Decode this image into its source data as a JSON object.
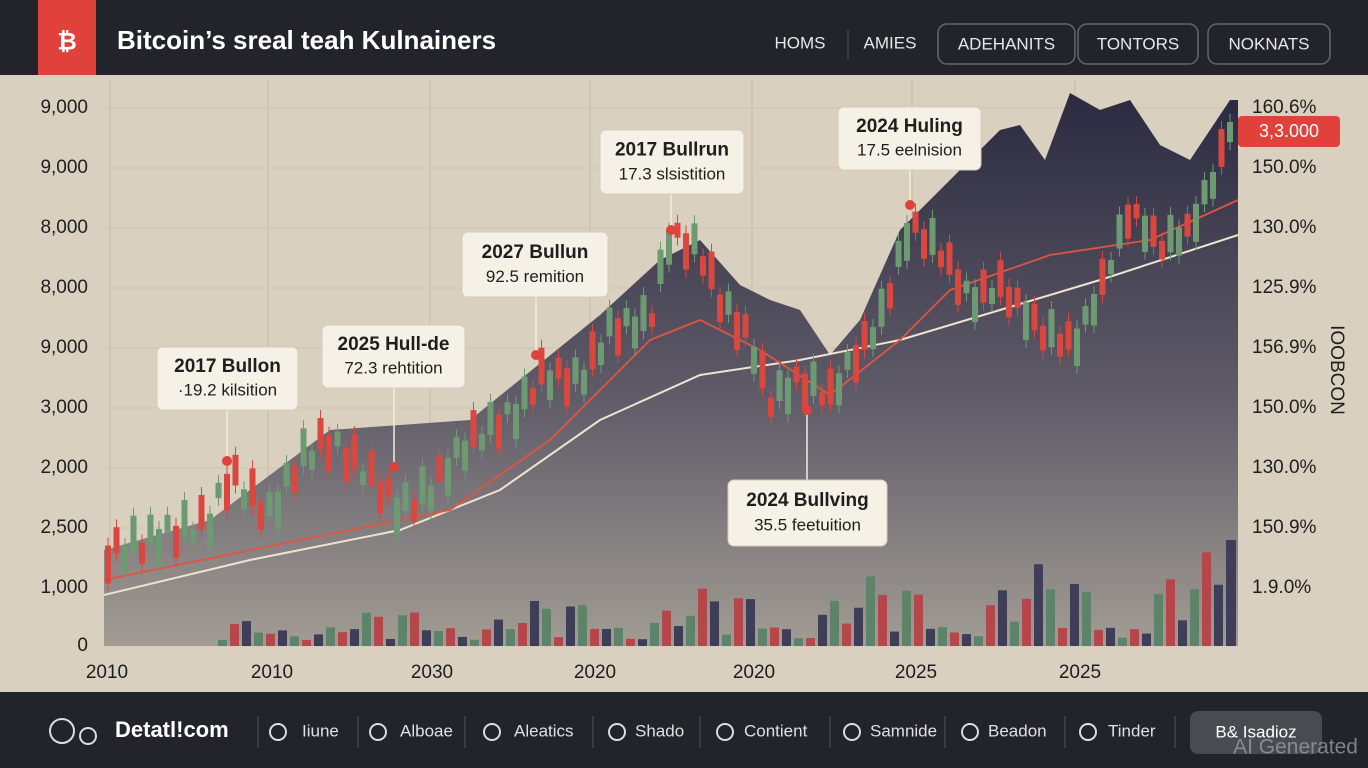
{
  "header": {
    "logo": "₿",
    "title": "Bitcoin’s sreal teah Kulnainers",
    "nav": [
      "HOMS",
      "AMIES"
    ],
    "buttons": [
      "ADEHANITS",
      "TONTORS",
      "NOKNATS"
    ]
  },
  "chart": {
    "left_axis": [
      "9,000",
      "9,000",
      "8,000",
      "8,000",
      "9,000",
      "3,000",
      "2,000",
      "2,500",
      "1,000",
      "0"
    ],
    "right_axis": [
      "160.6%",
      "150.0%",
      "130.0%",
      "125.9%",
      "156.9%",
      "150.0%",
      "130.0%",
      "150.9%",
      "1.9.0%"
    ],
    "right_axis_title": "IOOBCON",
    "price_tag": "3,3.000",
    "x_axis": [
      "2010",
      "2010",
      "2030",
      "2020",
      "2020",
      "2025",
      "2025"
    ],
    "annotations": [
      {
        "title": "2017 Bullon",
        "subtitle": "·19.2 kilsition"
      },
      {
        "title": "2025 Hull-de",
        "subtitle": "72.3 rehtition"
      },
      {
        "title": "2027 Bullun",
        "subtitle": "92.5 remition"
      },
      {
        "title": "2017 Bullrun",
        "subtitle": "17.3 slsistition"
      },
      {
        "title": "2024 Huling",
        "subtitle": "17.5 eelnision"
      },
      {
        "title": "2024 Bullving",
        "subtitle": "35.5 feetuition"
      }
    ]
  },
  "footer": {
    "brand": "Detatl!com",
    "nav": [
      "Iiune",
      "Alboae",
      "Aleatics",
      "Shado",
      "Contient",
      "Samnide",
      "Beadon",
      "Tinder"
    ],
    "button": "B& Isadioz",
    "watermark": "AI Generated"
  }
}
